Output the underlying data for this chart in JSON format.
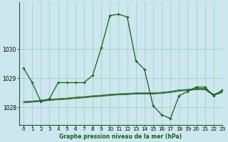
{
  "title": "Graphe pression niveau de la mer (hPa)",
  "background_color": "#cce8ee",
  "grid_color": "#99ccbb",
  "line_color": "#1a5c1a",
  "xlim": [
    -0.5,
    23
  ],
  "ylim": [
    1027.4,
    1031.6
  ],
  "yticks": [
    1028,
    1029,
    1030
  ],
  "xticks": [
    0,
    1,
    2,
    3,
    4,
    5,
    6,
    7,
    8,
    9,
    10,
    11,
    12,
    13,
    14,
    15,
    16,
    17,
    18,
    19,
    20,
    21,
    22,
    23
  ],
  "main_series": [
    1029.35,
    1028.85,
    1028.2,
    1028.3,
    1028.85,
    1028.85,
    1028.85,
    1028.85,
    1029.1,
    1030.05,
    1031.15,
    1031.2,
    1031.1,
    1029.6,
    1029.3,
    1028.05,
    1027.75,
    1027.62,
    1028.4,
    1028.55,
    1028.7,
    1028.7,
    1028.4,
    1028.6
  ],
  "flat_series": [
    [
      1028.2,
      1028.22,
      1028.25,
      1028.28,
      1028.3,
      1028.32,
      1028.35,
      1028.37,
      1028.4,
      1028.42,
      1028.45,
      1028.47,
      1028.48,
      1028.5,
      1028.5,
      1028.5,
      1028.52,
      1028.55,
      1028.6,
      1028.62,
      1028.65,
      1028.65,
      1028.45,
      1028.55
    ],
    [
      1028.18,
      1028.2,
      1028.23,
      1028.26,
      1028.28,
      1028.3,
      1028.33,
      1028.35,
      1028.38,
      1028.4,
      1028.43,
      1028.45,
      1028.46,
      1028.48,
      1028.48,
      1028.48,
      1028.5,
      1028.53,
      1028.58,
      1028.6,
      1028.63,
      1028.63,
      1028.43,
      1028.53
    ],
    [
      1028.16,
      1028.18,
      1028.21,
      1028.24,
      1028.26,
      1028.28,
      1028.31,
      1028.33,
      1028.36,
      1028.38,
      1028.41,
      1028.43,
      1028.44,
      1028.46,
      1028.46,
      1028.46,
      1028.48,
      1028.51,
      1028.56,
      1028.58,
      1028.61,
      1028.61,
      1028.41,
      1028.51
    ]
  ]
}
